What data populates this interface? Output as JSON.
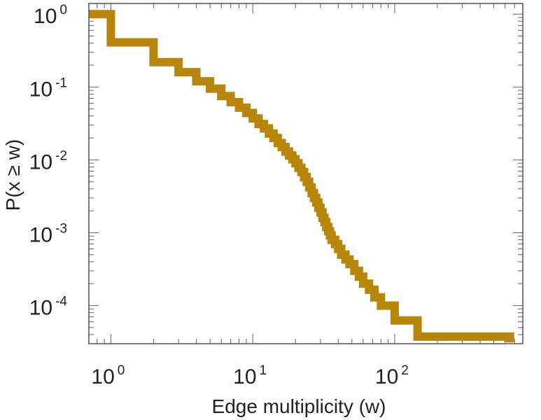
{
  "chart_data": {
    "type": "line",
    "title": "",
    "xlabel": "Edge multiplicity (w)",
    "ylabel": "P(x ≥ w)",
    "xscale": "log",
    "yscale": "log",
    "xlim": [
      0.7,
      800
    ],
    "ylim": [
      3e-05,
      1.4
    ],
    "grid": false,
    "legend": "none",
    "x_ticks": [
      {
        "base": "10",
        "exp": "0"
      },
      {
        "base": "10",
        "exp": "1"
      },
      {
        "base": "10",
        "exp": "2"
      }
    ],
    "y_ticks": [
      {
        "base": "10",
        "exp": "0"
      },
      {
        "base": "10",
        "exp": "-1"
      },
      {
        "base": "10",
        "exp": "-2"
      },
      {
        "base": "10",
        "exp": "-3"
      },
      {
        "base": "10",
        "exp": "-4"
      }
    ],
    "series": [
      {
        "color": "#b8860b",
        "step": true,
        "x": [
          0.7,
          1,
          2,
          3,
          4,
          5,
          6,
          7,
          8,
          9,
          10,
          11,
          12,
          13,
          14,
          15,
          16,
          17,
          18,
          19,
          20,
          21,
          22,
          23,
          24,
          25,
          26,
          27,
          28,
          29,
          30,
          31,
          32,
          33,
          34,
          35,
          36,
          38,
          40,
          42,
          45,
          48,
          52,
          56,
          60,
          66,
          72,
          80,
          100,
          145,
          650
        ],
        "y": [
          1.0,
          0.41,
          0.22,
          0.16,
          0.12,
          0.095,
          0.075,
          0.062,
          0.052,
          0.044,
          0.037,
          0.031,
          0.027,
          0.023,
          0.02,
          0.017,
          0.015,
          0.013,
          0.0115,
          0.0102,
          0.009,
          0.0078,
          0.0068,
          0.0058,
          0.005,
          0.0042,
          0.0035,
          0.003,
          0.0026,
          0.0022,
          0.0019,
          0.0016,
          0.0014,
          0.0012,
          0.00105,
          0.00092,
          0.0008,
          0.0007,
          0.0006,
          0.0005,
          0.00043,
          0.00037,
          0.0003,
          0.00025,
          0.0002,
          0.000165,
          0.00013,
          0.0001,
          6.25e-05,
          3.75e-05,
          3.75e-05
        ]
      }
    ]
  }
}
